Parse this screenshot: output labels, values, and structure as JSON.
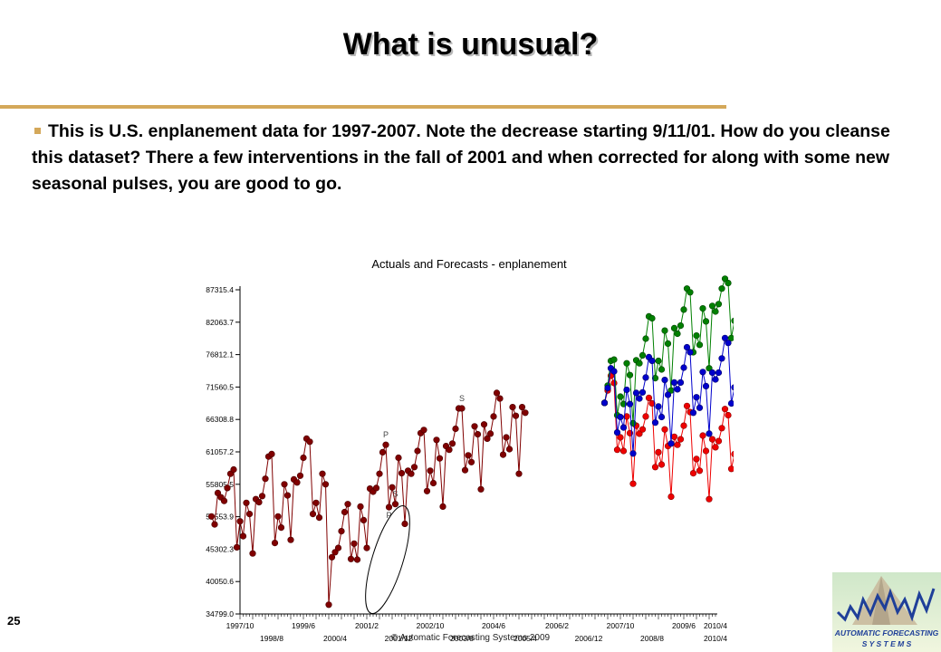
{
  "slide": {
    "title": "What is unusual?",
    "bullet": "This is U.S. enplanement data for 1997-2007.  Note the decrease starting 9/11/01.  How do you cleanse this dataset?  There a few interventions in the fall of 2001 and when corrected for along with some new seasonal pulses, you are good to go.",
    "page_number": "25",
    "copyright": "© Automatic Forecasting Systems 2009"
  },
  "logo": {
    "line1": "AUTOMATIC FORECASTING",
    "line2": "S Y S T E M S"
  },
  "colors": {
    "accent": "#d4a85a",
    "actual": "#800000",
    "forecast": "#0000cc",
    "upper": "#008000",
    "lower": "#ee0000"
  },
  "chart_data": {
    "type": "line",
    "title": "Actuals and Forecasts - enplanement",
    "ylim": [
      34799.0,
      87315.4
    ],
    "y_ticks": [
      "87315.4",
      "82063.7",
      "76812.1",
      "71560.5",
      "66308.8",
      "61057.2",
      "55805.5",
      "50553.9",
      "45302.3",
      "40050.6",
      "34799.0"
    ],
    "x_ticks_top": [
      "1997/10",
      "1999/6",
      "2001/2",
      "2002/10",
      "2004/6",
      "2006/2",
      "2007/10",
      "2009/6",
      "2010/4"
    ],
    "x_ticks_bottom": [
      "1998/8",
      "2000/4",
      "2001/12",
      "2003/8",
      "2005/4",
      "2006/12",
      "2008/8",
      "2010/4"
    ],
    "annotations": [
      {
        "label": "P",
        "date": "2001/08"
      },
      {
        "label": "P",
        "date": "2001/09"
      },
      {
        "label": "S",
        "date": "2001/11"
      },
      {
        "label": "S",
        "date": "2003/08"
      },
      {
        "label": "S",
        "date": "2005/05"
      }
    ],
    "series": [
      {
        "start": "1997/01",
        "values": [
          50600,
          49300,
          54400,
          53700,
          53100,
          55200,
          57500,
          58200,
          45600,
          49800,
          47400,
          52800,
          51000,
          44600,
          53400,
          52900,
          53900,
          56700,
          60300,
          60700,
          46300,
          50600,
          48800,
          55800,
          54000,
          46800,
          56600,
          56100,
          57200,
          60100,
          63200,
          62700,
          51000,
          52800,
          50400,
          57500,
          55800,
          36300,
          44000,
          44800,
          45500,
          48200,
          51300,
          52600,
          43700,
          46200,
          43600,
          52200,
          50000,
          45500,
          55100,
          54600,
          55200,
          57500,
          61000,
          62200,
          52100,
          55300,
          52600,
          60100,
          57600,
          49400,
          58000,
          57500,
          58600,
          61200,
          64100,
          64600,
          54700,
          58000,
          56000,
          63000,
          60000,
          52200,
          62000,
          61400,
          62400,
          64800,
          68100,
          68100,
          58100,
          60500,
          59400,
          65200,
          63900,
          55000,
          65500,
          63200,
          64000,
          66800,
          70600,
          69700,
          60600,
          63400,
          61500,
          68300,
          66900,
          57500,
          68300,
          67400
        ]
      },
      {
        "start": "2007/05",
        "values": [
          69000,
          71400,
          74600,
          74100,
          64200,
          66700,
          65000,
          71100,
          68800,
          60800,
          70600,
          69700,
          70700,
          73100,
          76400,
          75800,
          65800,
          68400,
          66700,
          72700,
          70300,
          62400,
          72300,
          71200,
          72300,
          74700,
          78000,
          77200,
          67400,
          69900,
          68200,
          74000,
          71700,
          64000,
          73900,
          72800,
          73900,
          76200,
          79500,
          78700,
          68900,
          71500,
          69800,
          75400
        ]
      },
      {
        "start": "2007/05",
        "values": [
          69000,
          71800,
          75800,
          76000,
          67000,
          70000,
          68800,
          75400,
          73500,
          65700,
          75900,
          75400,
          76700,
          79400,
          83000,
          82700,
          73000,
          75800,
          74400,
          80700,
          78600,
          71000,
          81100,
          80200,
          81500,
          84100,
          87500,
          86900,
          77200,
          79900,
          78400,
          84300,
          82200,
          74600,
          84700,
          83800,
          85000,
          87500,
          89100,
          88400,
          79500,
          82300,
          80800,
          86500
        ]
      },
      {
        "start": "2007/05",
        "values": [
          69000,
          71000,
          73400,
          72200,
          61400,
          63400,
          61200,
          66800,
          64100,
          55900,
          65300,
          64000,
          64700,
          66800,
          69800,
          68900,
          58600,
          61000,
          59000,
          64700,
          62000,
          53800,
          63500,
          62200,
          63100,
          65300,
          68500,
          67500,
          57600,
          59900,
          58000,
          63700,
          61200,
          53400,
          63100,
          61800,
          62800,
          64900,
          68000,
          67000,
          58300,
          60700,
          58800,
          64300
        ]
      }
    ]
  }
}
